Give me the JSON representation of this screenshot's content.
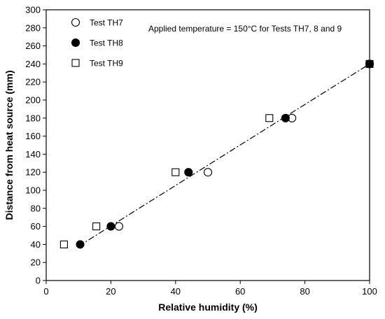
{
  "chart_data": {
    "type": "scatter",
    "xlabel": "Relative humidity (%)",
    "ylabel": "Distance from heat source (mm)",
    "xlim": [
      0,
      100
    ],
    "ylim": [
      0,
      300
    ],
    "xticks": [
      0,
      20,
      40,
      60,
      80,
      100
    ],
    "yticks": [
      0,
      20,
      40,
      60,
      80,
      100,
      120,
      140,
      160,
      180,
      200,
      220,
      240,
      260,
      280,
      300
    ],
    "grid": false,
    "legend_position": "top-left",
    "annotation": "Applied temperature = 150°C for Tests TH7, 8 and 9",
    "series": [
      {
        "name": "Test TH7",
        "marker": "open-circle",
        "x": [
          22.5,
          50,
          76,
          100
        ],
        "y": [
          60,
          120,
          180,
          240
        ]
      },
      {
        "name": "Test TH8",
        "marker": "filled-circle",
        "x": [
          10.5,
          20,
          44,
          74,
          100
        ],
        "y": [
          40,
          60,
          120,
          180,
          240
        ]
      },
      {
        "name": "Test TH9",
        "marker": "open-square",
        "x": [
          5.5,
          15.5,
          40,
          69,
          100
        ],
        "y": [
          40,
          60,
          120,
          180,
          240
        ]
      }
    ],
    "fit_line": {
      "style": "dash-dot",
      "x": [
        10,
        100
      ],
      "y": [
        38,
        240
      ]
    }
  }
}
